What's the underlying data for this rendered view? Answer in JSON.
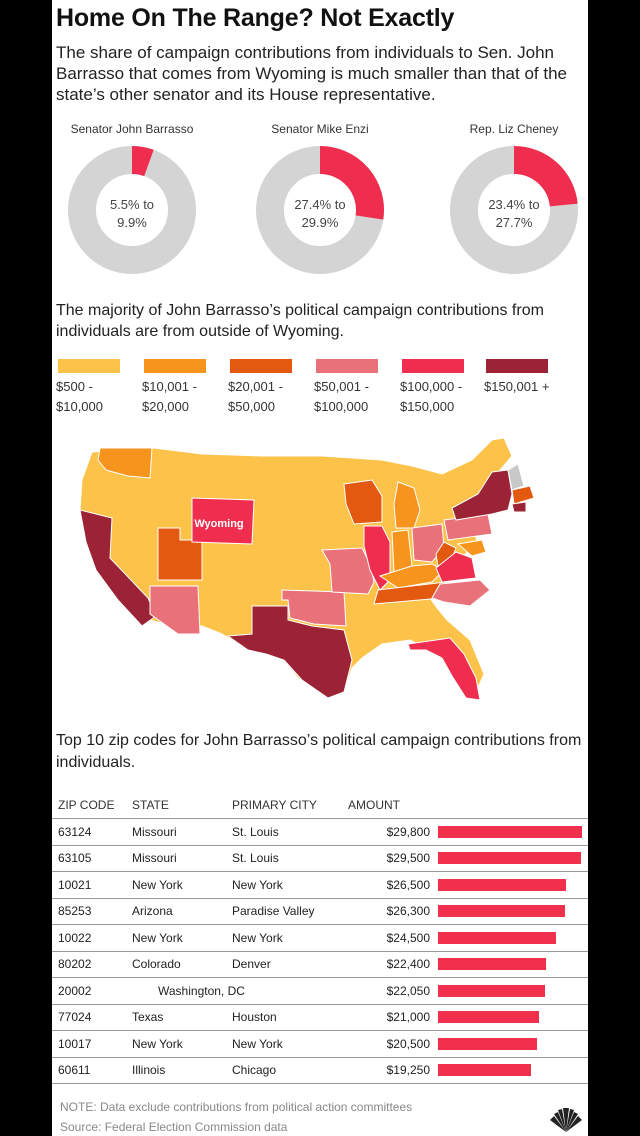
{
  "title": "Home On The Range? Not Exactly",
  "intro": "The share of campaign contributions from individuals to Sen. John Barrasso that comes from Wyoming is much smaller than that of the state’s other senator and its House representative.",
  "donuts": [
    {
      "label": "Senator John Barrasso",
      "range": "5.5% to\n9.9%",
      "wyoming_share": 0.055
    },
    {
      "label": "Senator Mike Enzi",
      "range": "27.4% to\n29.9%",
      "wyoming_share": 0.274
    },
    {
      "label": "Rep. Liz Cheney",
      "range": "23.4% to\n27.7%",
      "wyoming_share": 0.234
    }
  ],
  "majority_text": "The majority of John Barrasso’s political campaign contributions from individuals are from outside of Wyoming.",
  "legend": [
    {
      "label": "$500 -\n$10,000",
      "color": "#fcc24a"
    },
    {
      "label": "$10,001 -\n$20,000",
      "color": "#f7941d"
    },
    {
      "label": "$20,001 -\n$50,000",
      "color": "#e2590f"
    },
    {
      "label": "$50,001 -\n$100,000",
      "color": "#e9717a"
    },
    {
      "label": "$100,000 -\n$150,000",
      "color": "#ef2d4e"
    },
    {
      "label": "$150,001 +",
      "color": "#9b2335"
    }
  ],
  "map": {
    "wyoming_label": "Wyoming"
  },
  "table_intro": "Top 10 zip codes for John Barrasso’s political campaign contributions from individuals.",
  "table_headers": [
    "ZIP CODE",
    "STATE",
    "PRIMARY CITY",
    "AMOUNT"
  ],
  "chart_data": {
    "type": "bar",
    "categories": [
      "63124",
      "63105",
      "10021",
      "85253",
      "10022",
      "80202",
      "20002",
      "77024",
      "10017",
      "60611"
    ],
    "rows": [
      {
        "zip": "63124",
        "state": "Missouri",
        "city": "St. Louis",
        "amount": "$29,800",
        "value": 29800
      },
      {
        "zip": "63105",
        "state": "Missouri",
        "city": "St. Louis",
        "amount": "$29,500",
        "value": 29500
      },
      {
        "zip": "10021",
        "state": "New York",
        "city": "New York",
        "amount": "$26,500",
        "value": 26500
      },
      {
        "zip": "85253",
        "state": "Arizona",
        "city": "Paradise Valley",
        "amount": "$26,300",
        "value": 26300
      },
      {
        "zip": "10022",
        "state": "New York",
        "city": "New York",
        "amount": "$24,500",
        "value": 24500
      },
      {
        "zip": "80202",
        "state": "Colorado",
        "city": "Denver",
        "amount": "$22,400",
        "value": 22400
      },
      {
        "zip": "20002",
        "state": "",
        "city": "Washington, DC",
        "amount": "$22,050",
        "value": 22050
      },
      {
        "zip": "77024",
        "state": "Texas",
        "city": "Houston",
        "amount": "$21,000",
        "value": 21000
      },
      {
        "zip": "10017",
        "state": "New York",
        "city": "New York",
        "amount": "$20,500",
        "value": 20500
      },
      {
        "zip": "60611",
        "state": "Illinois",
        "city": "Chicago",
        "amount": "$19,250",
        "value": 19250
      }
    ],
    "values": [
      29800,
      29500,
      26500,
      26300,
      24500,
      22400,
      22050,
      21000,
      20500,
      19250
    ],
    "xlim": [
      0,
      29800
    ],
    "color": "#f1304d"
  },
  "note": "NOTE: Data exclude contributions from political action committees",
  "source": "Source: Federal Election Commission data"
}
